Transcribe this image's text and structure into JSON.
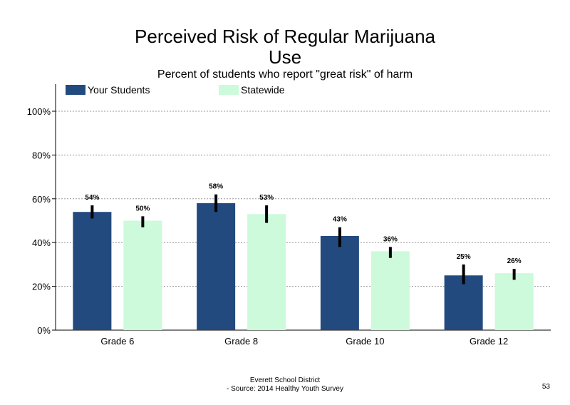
{
  "title_line1": "Perceived Risk of Regular Marijuana",
  "title_line2": "Use",
  "subtitle": "Percent of students who report \"great risk\" of harm",
  "footer_line1": "Everett School District",
  "footer_line2": "- Source: 2014 Healthy  Youth Survey",
  "page_number": "53",
  "colors": {
    "your_students": "#224a7e",
    "statewide": "#ccfadb",
    "error_bar": "#000000",
    "grid": "#9a9a9a"
  },
  "chart_data": {
    "type": "bar",
    "title": "Perceived Risk of Regular Marijuana Use",
    "subtitle": "Percent of students who report \"great risk\" of harm",
    "categories": [
      "Grade 6",
      "Grade 8",
      "Grade 10",
      "Grade 12"
    ],
    "series": [
      {
        "name": "Your Students",
        "values": [
          54,
          58,
          43,
          25
        ],
        "labels": [
          "54%",
          "58%",
          "43%",
          "25%"
        ],
        "error_low": [
          51,
          54,
          38,
          21
        ],
        "error_high": [
          57,
          62,
          47,
          30
        ]
      },
      {
        "name": "Statewide",
        "values": [
          50,
          53,
          36,
          26
        ],
        "labels": [
          "50%",
          "53%",
          "36%",
          "26%"
        ],
        "error_low": [
          47,
          49,
          33,
          23
        ],
        "error_high": [
          52,
          57,
          38,
          28
        ]
      }
    ],
    "yticks": [
      "0%",
      "20%",
      "40%",
      "60%",
      "80%",
      "100%"
    ],
    "ylim": [
      0,
      100
    ],
    "grid": true,
    "legend_position": "top"
  }
}
